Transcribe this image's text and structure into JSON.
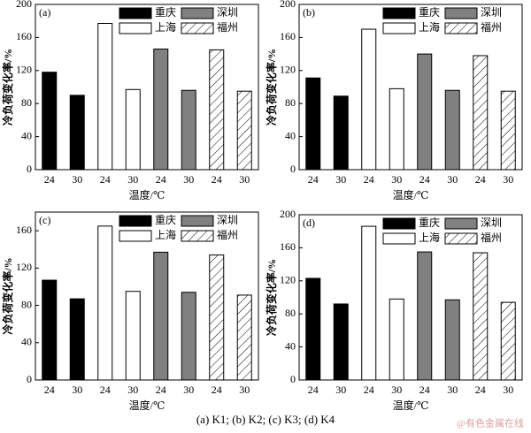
{
  "chart_data": [
    {
      "type": "bar",
      "label": "(a)",
      "xlabel": "温度/℃",
      "ylabel": "冷负荷变化率/%",
      "categories": [
        "24",
        "30",
        "24",
        "30",
        "24",
        "30",
        "24",
        "30"
      ],
      "series": [
        {
          "name": "重庆",
          "color": "#000000",
          "values": [
            118,
            90,
            null,
            null,
            null,
            null,
            null,
            null
          ]
        },
        {
          "name": "上海",
          "color": "#ffffff",
          "values": [
            null,
            null,
            177,
            97,
            null,
            null,
            null,
            null
          ]
        },
        {
          "name": "深圳",
          "color": "#808080",
          "values": [
            null,
            null,
            null,
            null,
            146,
            96,
            null,
            null
          ]
        },
        {
          "name": "福州",
          "color": "#ffffff",
          "pattern": "hatch",
          "values": [
            null,
            null,
            null,
            null,
            null,
            null,
            145,
            95
          ]
        }
      ],
      "ylim": [
        0,
        200
      ],
      "yticks": [
        0,
        40,
        80,
        120,
        160,
        200
      ]
    },
    {
      "type": "bar",
      "label": "(b)",
      "xlabel": "温度/℃",
      "ylabel": "冷负荷变化率/%",
      "categories": [
        "24",
        "30",
        "24",
        "30",
        "24",
        "30",
        "24",
        "30"
      ],
      "series": [
        {
          "name": "重庆",
          "color": "#000000",
          "values": [
            111,
            89,
            null,
            null,
            null,
            null,
            null,
            null
          ]
        },
        {
          "name": "上海",
          "color": "#ffffff",
          "values": [
            null,
            null,
            170,
            98,
            null,
            null,
            null,
            null
          ]
        },
        {
          "name": "深圳",
          "color": "#808080",
          "values": [
            null,
            null,
            null,
            null,
            140,
            96,
            null,
            null
          ]
        },
        {
          "name": "福州",
          "color": "#ffffff",
          "pattern": "hatch",
          "values": [
            null,
            null,
            null,
            null,
            null,
            null,
            138,
            95
          ]
        }
      ],
      "ylim": [
        0,
        200
      ],
      "yticks": [
        0,
        40,
        80,
        120,
        160,
        200
      ]
    },
    {
      "type": "bar",
      "label": "(c)",
      "xlabel": "温度/℃",
      "ylabel": "冷负荷变化率/%",
      "categories": [
        "24",
        "30",
        "24",
        "30",
        "24",
        "30",
        "24",
        "30"
      ],
      "series": [
        {
          "name": "重庆",
          "color": "#000000",
          "values": [
            107,
            87,
            null,
            null,
            null,
            null,
            null,
            null
          ]
        },
        {
          "name": "上海",
          "color": "#ffffff",
          "values": [
            null,
            null,
            165,
            95,
            null,
            null,
            null,
            null
          ]
        },
        {
          "name": "深圳",
          "color": "#808080",
          "values": [
            null,
            null,
            null,
            null,
            137,
            94,
            null,
            null
          ]
        },
        {
          "name": "福州",
          "color": "#ffffff",
          "pattern": "hatch",
          "values": [
            null,
            null,
            null,
            null,
            null,
            null,
            134,
            91
          ]
        }
      ],
      "ylim": [
        0,
        180
      ],
      "yticks": [
        0,
        40,
        80,
        120,
        160
      ]
    },
    {
      "type": "bar",
      "label": "(d)",
      "xlabel": "温度/℃",
      "ylabel": "冷负荷变化率/%",
      "categories": [
        "24",
        "30",
        "24",
        "30",
        "24",
        "30",
        "24",
        "30"
      ],
      "series": [
        {
          "name": "重庆",
          "color": "#000000",
          "values": [
            123,
            92,
            null,
            null,
            null,
            null,
            null,
            null
          ]
        },
        {
          "name": "上海",
          "color": "#ffffff",
          "values": [
            null,
            null,
            186,
            98,
            null,
            null,
            null,
            null
          ]
        },
        {
          "name": "深圳",
          "color": "#808080",
          "values": [
            null,
            null,
            null,
            null,
            155,
            97,
            null,
            null
          ]
        },
        {
          "name": "福州",
          "color": "#ffffff",
          "pattern": "hatch",
          "values": [
            null,
            null,
            null,
            null,
            null,
            null,
            154,
            94
          ]
        }
      ],
      "ylim": [
        0,
        200
      ],
      "yticks": [
        0,
        40,
        80,
        120,
        160,
        200
      ]
    }
  ],
  "caption": "(a) K1; (b) K2; (c) K3; (d) K4",
  "watermark": "@有色金属在线"
}
